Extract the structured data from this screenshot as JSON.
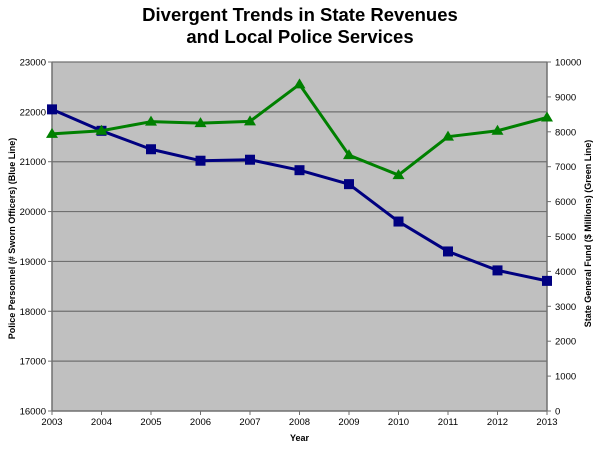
{
  "chart_data": {
    "type": "line",
    "title_lines": [
      "Divergent Trends in State Revenues",
      "and Local Police Services"
    ],
    "title": "Divergent Trends in State Revenues and Local Police Services",
    "xlabel": "Year",
    "ylabel_left": "Police Personnel (# Sworn Officers)  (Blue Line)",
    "ylabel_right": "State General Fund ($ Millions) (Green Line)",
    "x": [
      "2003",
      "2004",
      "2005",
      "2006",
      "2007",
      "2008",
      "2009",
      "2010",
      "2011",
      "2012",
      "2013"
    ],
    "y_left": {
      "range": [
        16000,
        23000
      ],
      "ticks": [
        "16000",
        "17000",
        "18000",
        "19000",
        "20000",
        "21000",
        "22000",
        "23000"
      ]
    },
    "y_right": {
      "range": [
        0,
        10000
      ],
      "ticks": [
        "0",
        "1000",
        "2000",
        "3000",
        "4000",
        "5000",
        "6000",
        "7000",
        "8000",
        "9000",
        "10000"
      ]
    },
    "grid": true,
    "legend": "none",
    "series": [
      {
        "name": "Police Personnel (# Sworn Officers)",
        "axis": "left",
        "color": "#000080",
        "marker": "square",
        "values": [
          22050,
          21620,
          21250,
          21020,
          21040,
          20830,
          20550,
          19800,
          19200,
          18820,
          18610
        ]
      },
      {
        "name": "State General Fund ($ Millions)",
        "axis": "right",
        "color": "#008000",
        "marker": "triangle",
        "values": [
          7940,
          8030,
          8290,
          8250,
          8300,
          9360,
          7330,
          6760,
          7860,
          8030,
          8410
        ]
      }
    ]
  },
  "colors": {
    "plot_background": "#c0c0c0",
    "gridline": "#707070",
    "axis": "#707070"
  }
}
